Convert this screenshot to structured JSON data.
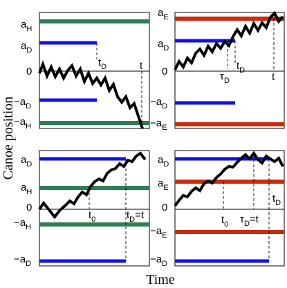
{
  "figure": {
    "ylabel": "Canoe position",
    "xlabel": "Time"
  },
  "colors": {
    "green": "#2e7d57",
    "blue": "#1010ee",
    "red": "#cc2a0a",
    "walk": "#000000"
  },
  "panels": {
    "top_left": {
      "ylabels": {
        "aH": [
          "a",
          "H"
        ],
        "aD": [
          "a",
          "D"
        ],
        "zero": "0",
        "naD": [
          "−a",
          "D"
        ],
        "naH": [
          "−a",
          "H"
        ]
      },
      "annotations": {
        "tD": [
          "t",
          "D"
        ],
        "t": "t"
      }
    },
    "top_right": {
      "ylabels": {
        "aE": [
          "a",
          "E"
        ],
        "aD": [
          "a",
          "D"
        ],
        "zero": "0",
        "naD": [
          "−a",
          "D"
        ],
        "naE": [
          "−a",
          "E"
        ]
      },
      "annotations": {
        "tauD": [
          "τ",
          "D"
        ],
        "tD": [
          "t",
          "D"
        ],
        "t": "t"
      }
    },
    "bottom_left": {
      "ylabels": {
        "aD": [
          "a",
          "D"
        ],
        "aH": [
          "a",
          "H"
        ],
        "zero": "0",
        "naH": [
          "−a",
          "H"
        ],
        "naD": [
          "−a",
          "D"
        ]
      },
      "annotations": {
        "t0": [
          "t",
          "0"
        ],
        "tDt": [
          "t",
          "D",
          "=t"
        ]
      }
    },
    "bottom_right": {
      "ylabels": {
        "aD": [
          "a",
          "D"
        ],
        "aE": [
          "a",
          "E"
        ],
        "zero": "0",
        "naE": [
          "−a",
          "E"
        ],
        "naD": [
          "−a",
          "D"
        ]
      },
      "annotations": {
        "t0": [
          "t",
          "0"
        ],
        "tauDt": [
          "τ",
          "D",
          "=t"
        ],
        "tD": [
          "t",
          "D"
        ]
      }
    }
  }
}
